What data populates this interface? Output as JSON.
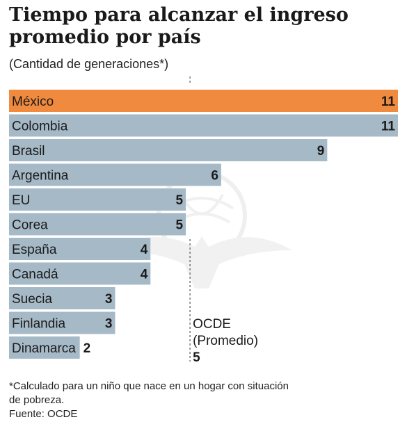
{
  "title": "Tiempo para alcanzar el ingreso promedio por país",
  "subtitle": "(Cantidad de generaciones*)",
  "chart_data": {
    "type": "bar",
    "orientation": "horizontal",
    "categories": [
      "México",
      "Colombia",
      "Brasil",
      "Argentina",
      "EU",
      "Corea",
      "España",
      "Canadá",
      "Suecia",
      "Finlandia",
      "Dinamarca"
    ],
    "values": [
      11,
      11,
      9,
      6,
      5,
      5,
      4,
      4,
      3,
      3,
      2
    ],
    "highlight_category": "México",
    "highlight_color": "#f08a3e",
    "bar_color": "#a6b9c7",
    "reference_line": {
      "value": 5,
      "label_lines": [
        "OCDE",
        "(Promedio)"
      ],
      "value_label": "5"
    },
    "xlim": [
      0,
      11
    ],
    "grid": false,
    "legend": "none"
  },
  "footnote": {
    "line1": "*Calculado para un niño que nace en un hogar con situación",
    "line2": "de pobreza.",
    "source": "Fuente: OCDE"
  }
}
